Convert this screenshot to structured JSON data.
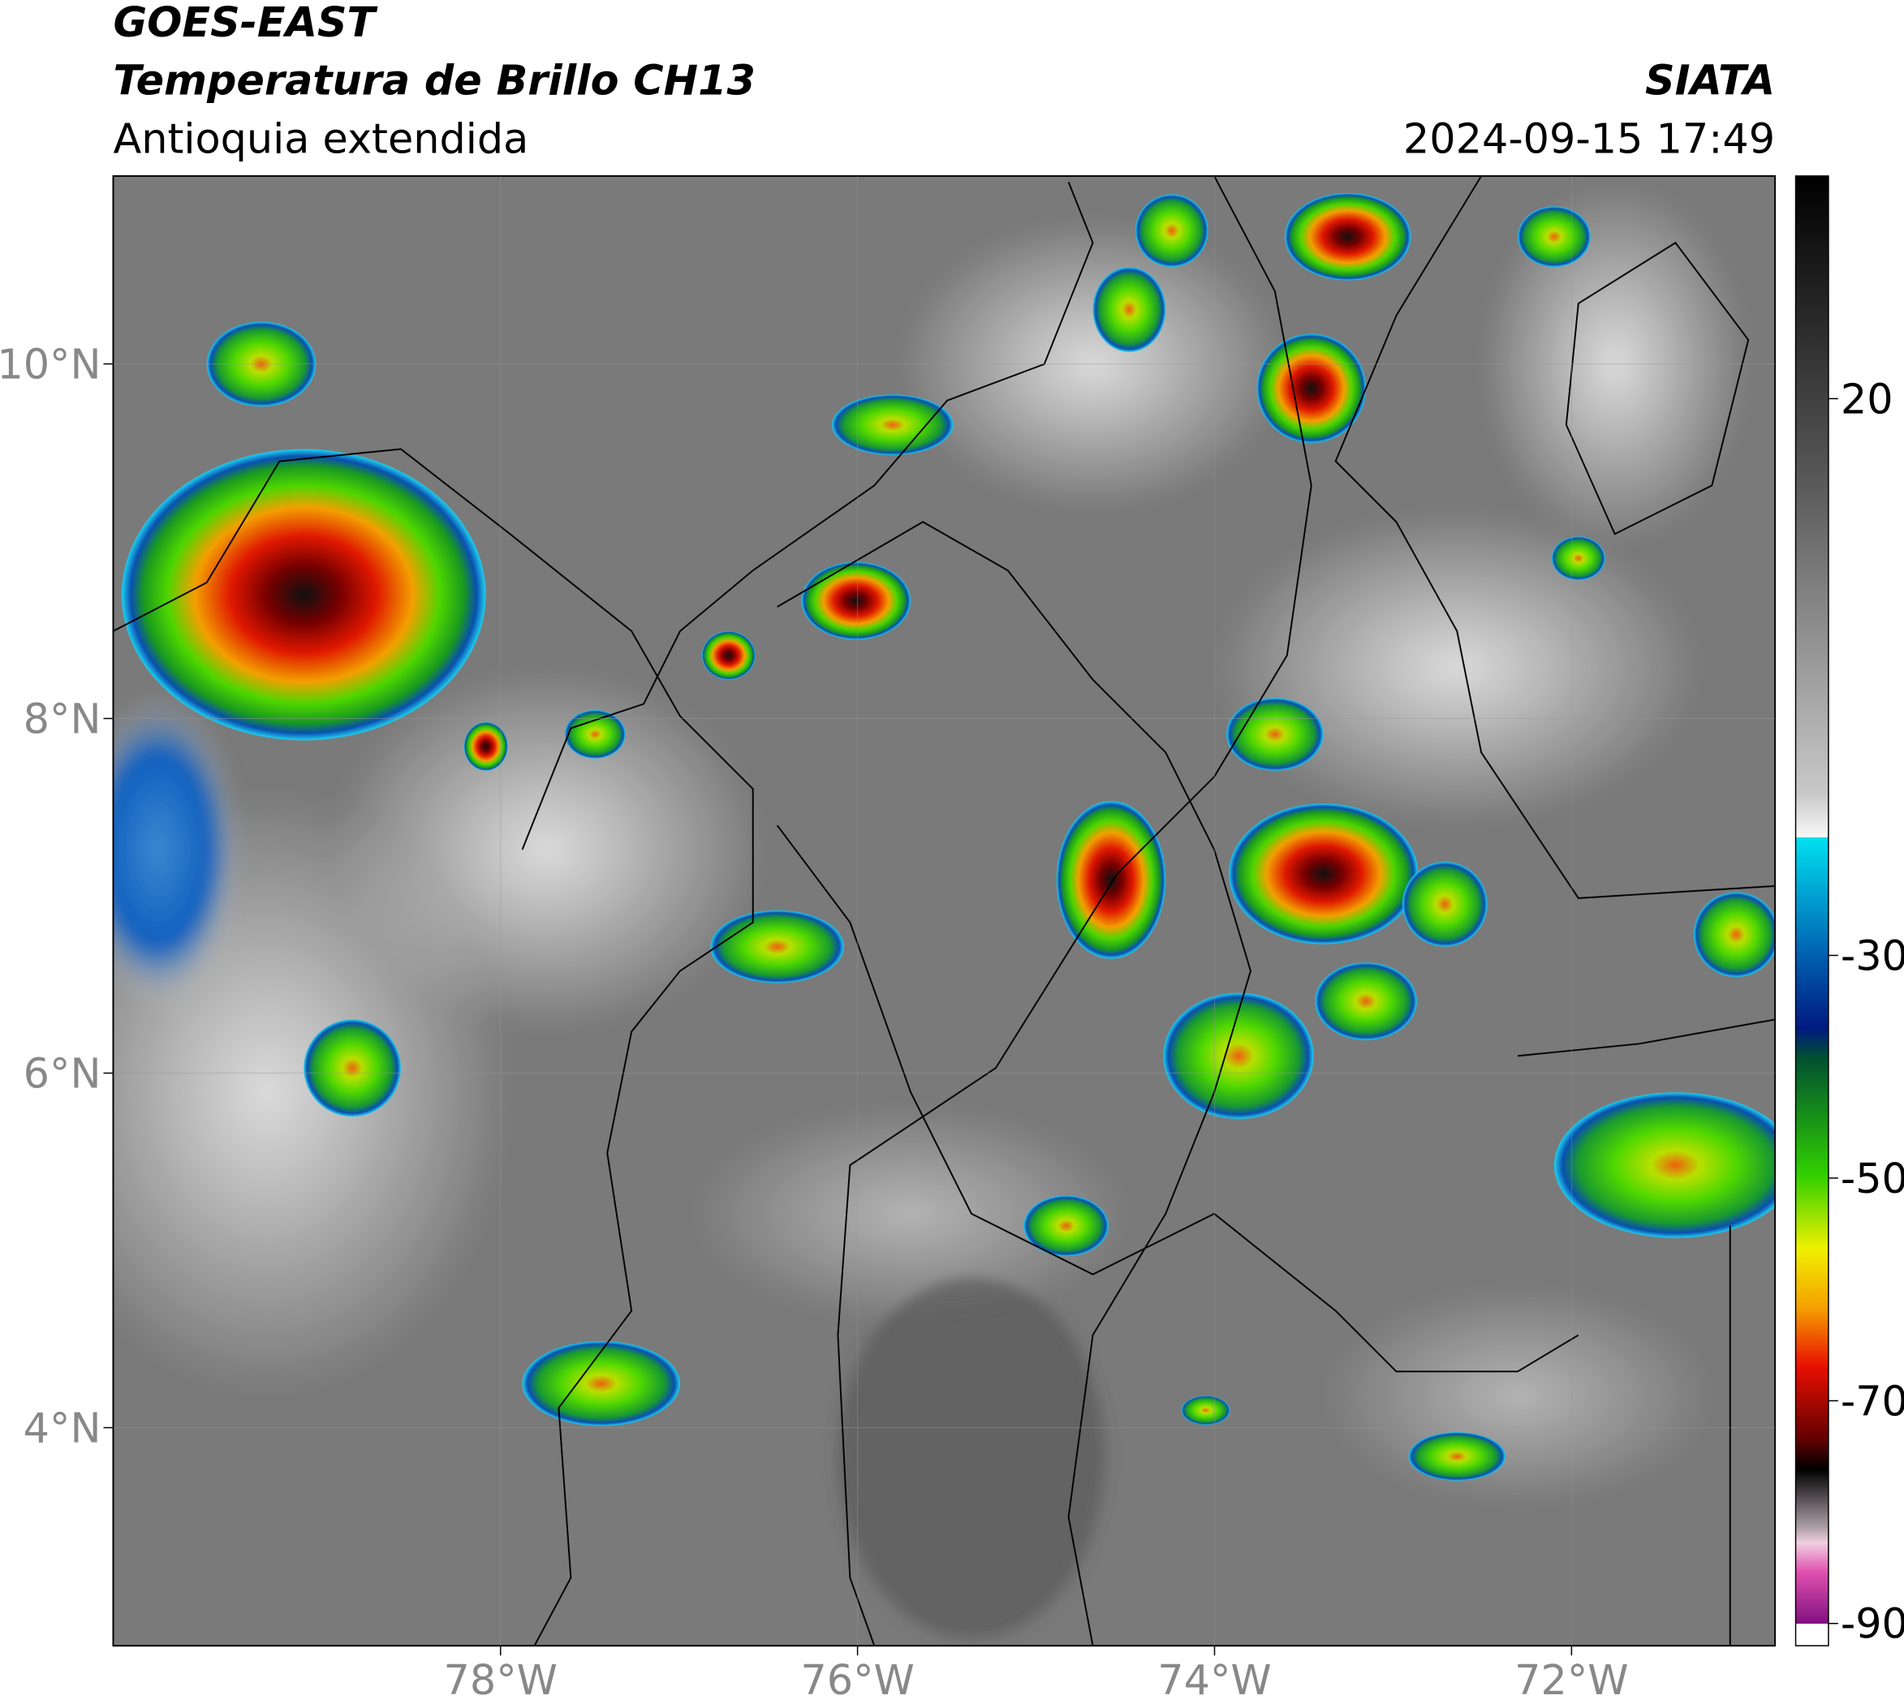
{
  "header": {
    "title": "GOES-EAST",
    "subtitle": "Temperatura de Brillo CH13",
    "region": "Antioquia extendida",
    "source": "SIATA",
    "datetime": "2024-09-15 17:49"
  },
  "map": {
    "xlim": [
      -80.17,
      -70.86
    ],
    "ylim": [
      2.77,
      11.06
    ],
    "xticks": [
      {
        "value": -78,
        "label": "78°W"
      },
      {
        "value": -76,
        "label": "76°W"
      },
      {
        "value": -74,
        "label": "74°W"
      },
      {
        "value": -72,
        "label": "72°W"
      }
    ],
    "yticks": [
      {
        "value": 4,
        "label": "4°N"
      },
      {
        "value": 6,
        "label": "6°N"
      },
      {
        "value": 8,
        "label": "8°N"
      },
      {
        "value": 10,
        "label": "10°N"
      }
    ]
  },
  "colorbar": {
    "lim": [
      -92,
      40
    ],
    "ticks": [
      20,
      -30,
      -50,
      -70,
      -90
    ]
  }
}
